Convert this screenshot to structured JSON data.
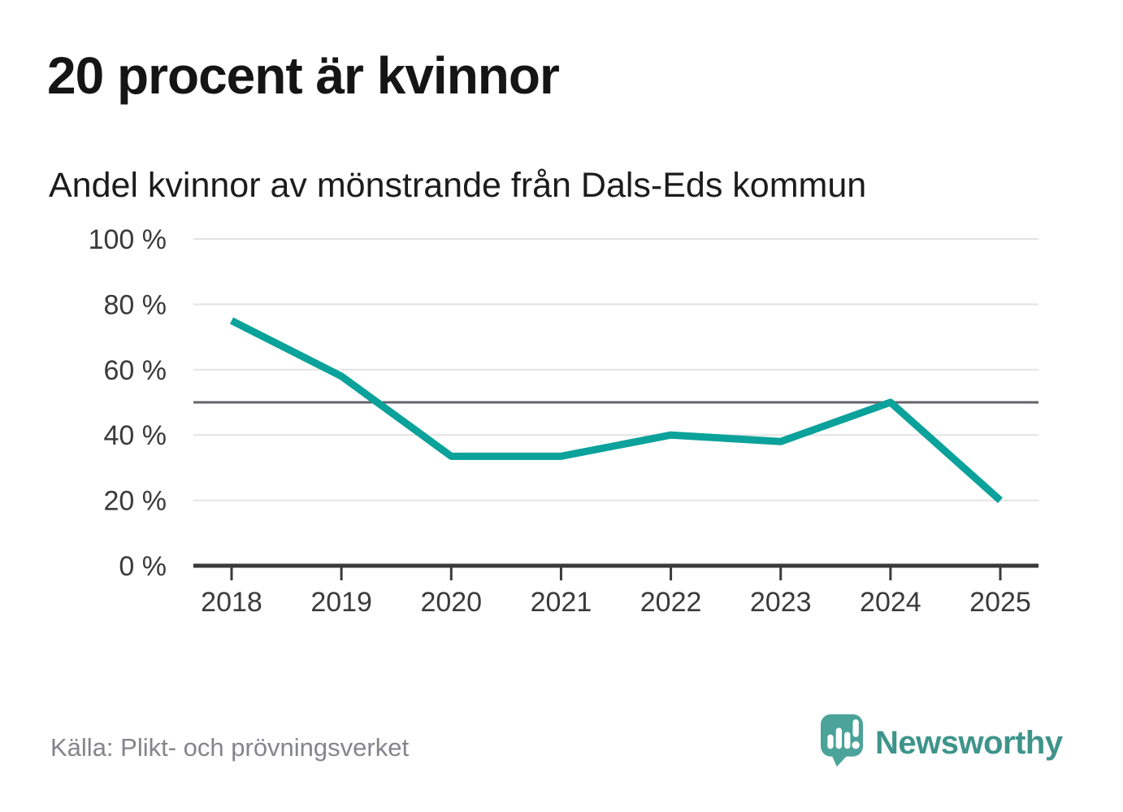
{
  "chart_data": {
    "type": "line",
    "title": "20 procent är kvinnor",
    "subtitle": "Andel kvinnor av mönstrande från Dals-Eds kommun",
    "x": [
      "2018",
      "2019",
      "2020",
      "2021",
      "2022",
      "2023",
      "2024",
      "2025"
    ],
    "series": [
      {
        "name": "Andel kvinnor av mönstrande",
        "values": [
          75,
          58,
          33.5,
          33.5,
          40,
          38,
          50,
          20
        ],
        "color": "#0aa29a"
      }
    ],
    "unit": "%",
    "ylim": [
      0,
      100
    ],
    "yticks": [
      0,
      20,
      40,
      60,
      80,
      100
    ],
    "ytick_labels": [
      "0 %",
      "20 %",
      "40 %",
      "60 %",
      "80 %",
      "100 %"
    ],
    "reference_line": {
      "value": 50,
      "color": "#63636b"
    },
    "grid": true,
    "gridline_color": "#e3e3e3",
    "axis_color": "#3a3a3a",
    "legend": "none"
  },
  "footer": {
    "source": "Källa: Plikt- och prövningsverket",
    "brand_name": "Newsworthy",
    "brand_color": "#3e948b",
    "brand_icon": "speech-bubble-bar-chart-exclamation",
    "brand_icon_color": "#4ba39a"
  }
}
